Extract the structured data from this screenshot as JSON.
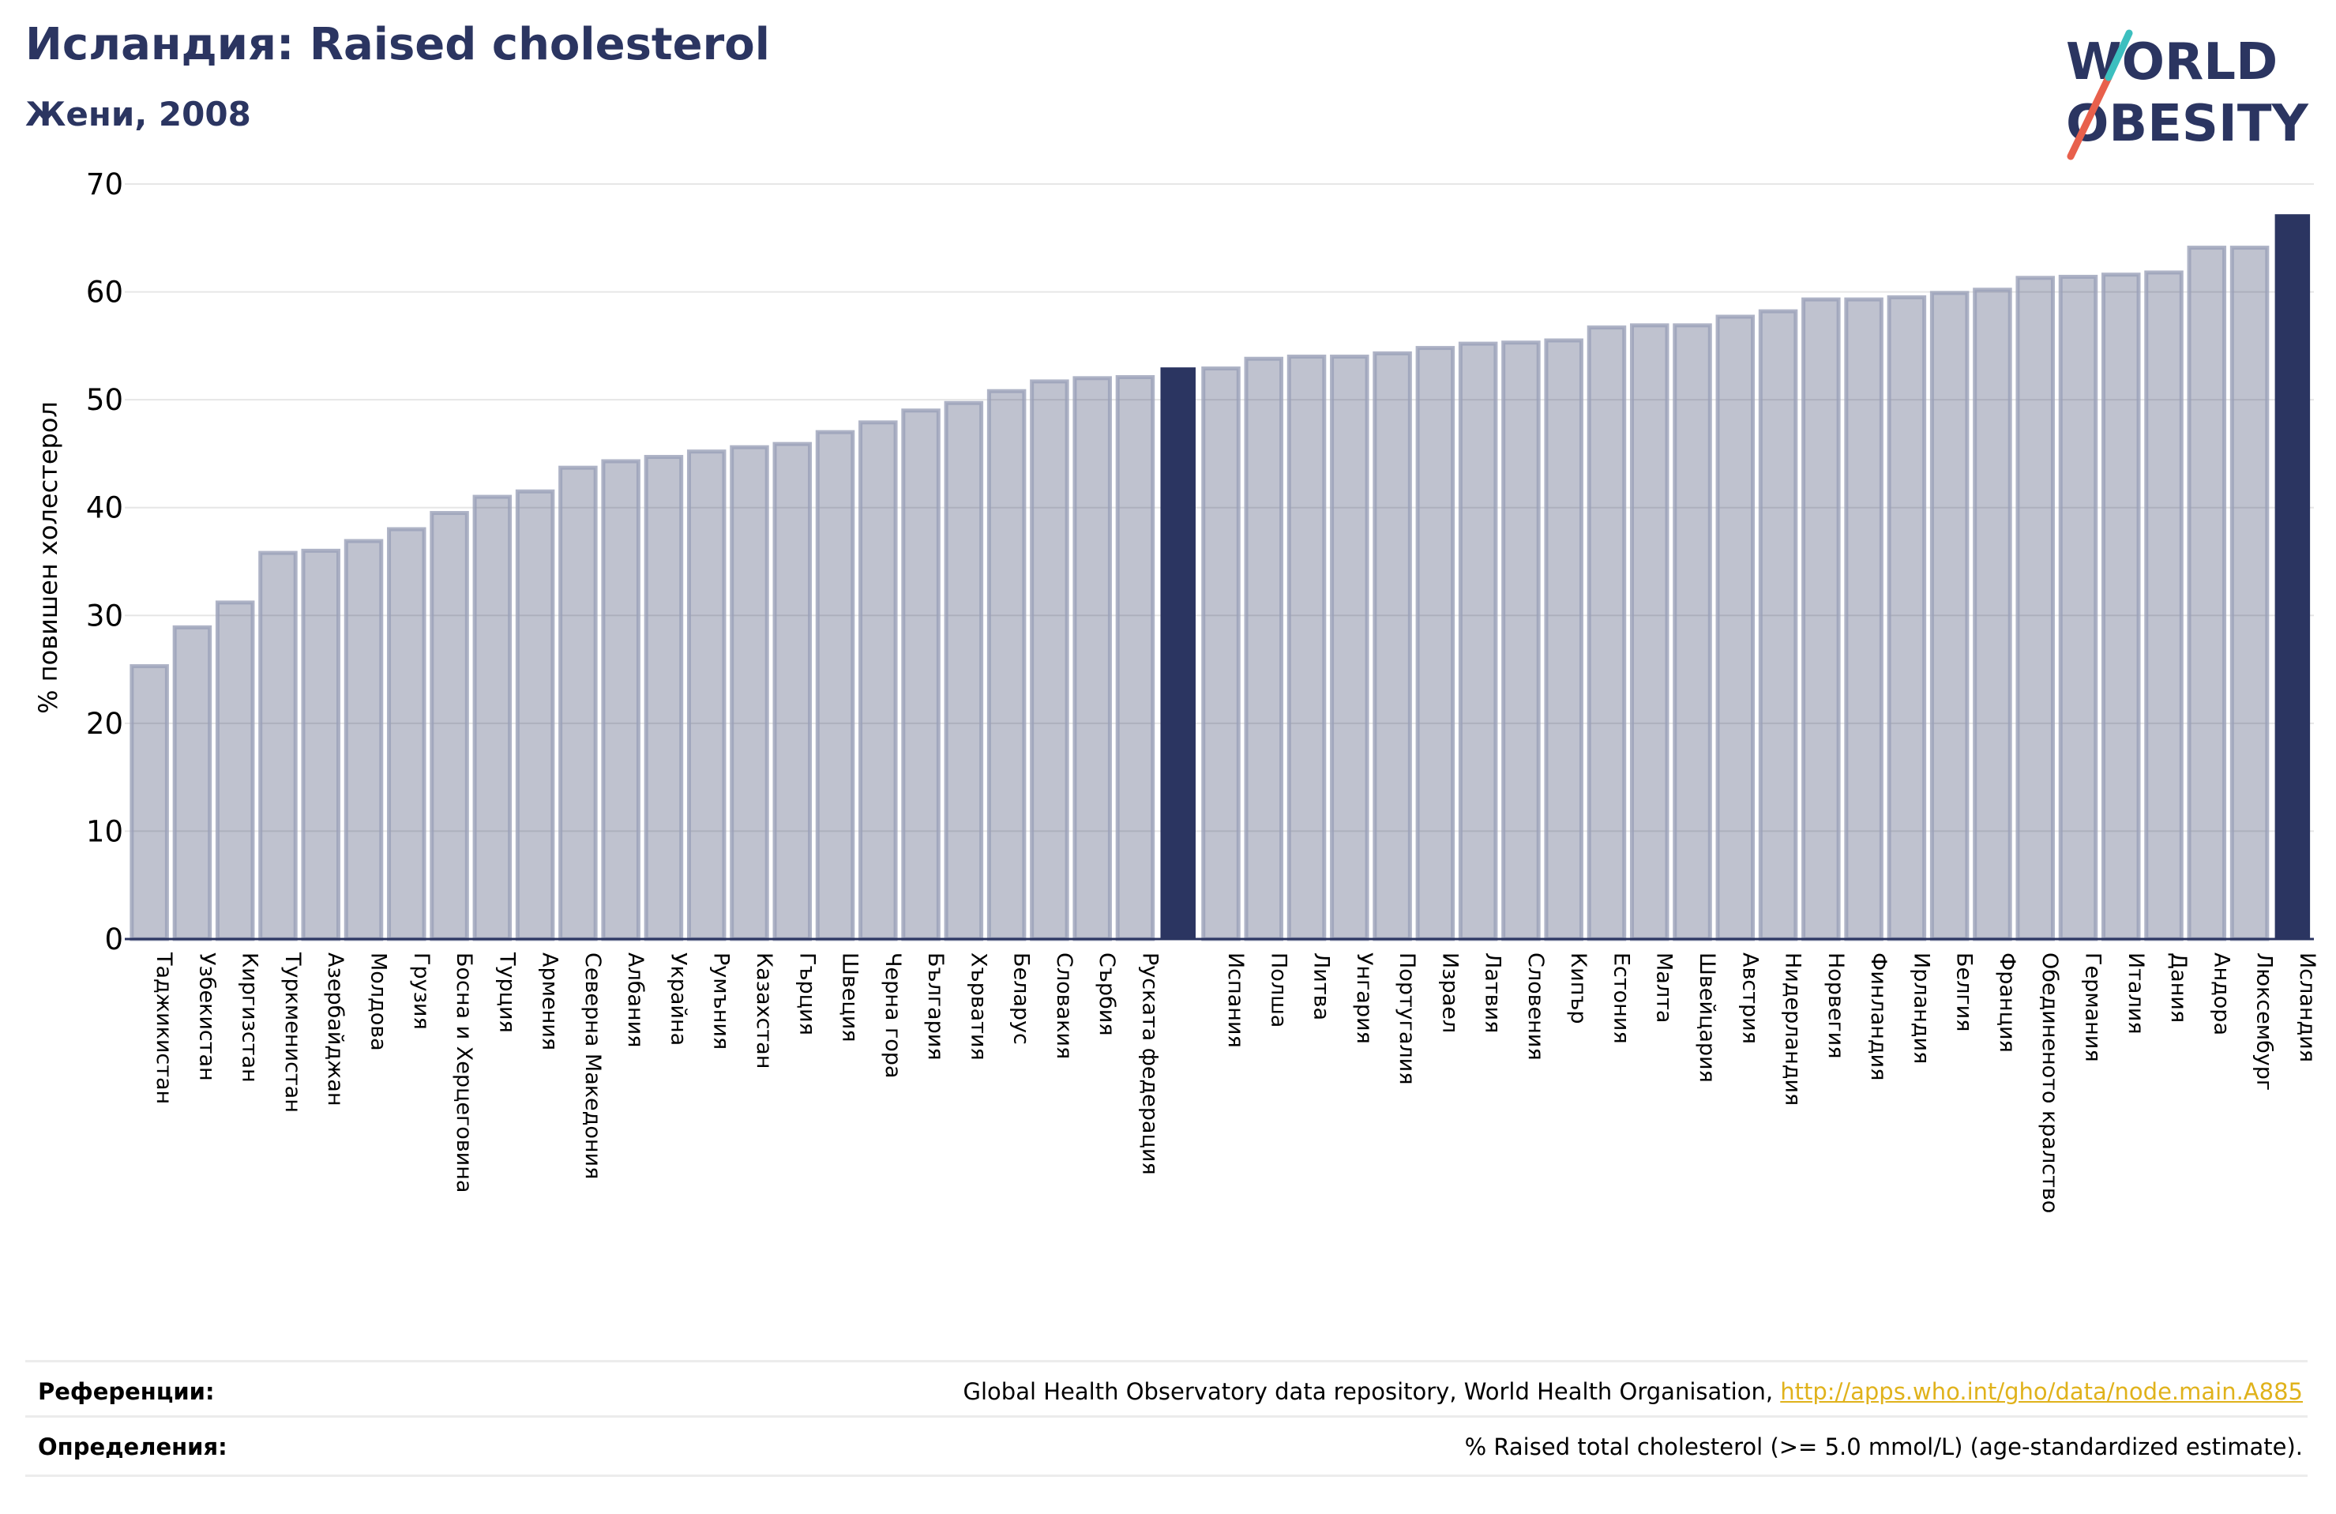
{
  "header": {
    "title": "Исландия: Raised cholesterol",
    "subtitle": "Жени, 2008"
  },
  "logo": {
    "line1": "WORLD",
    "line2": "OBESITY",
    "colors": {
      "text": "#2b3561",
      "slash_red": "#e8604c",
      "slash_teal": "#3cbfbf"
    }
  },
  "colors": {
    "bar_default": "#2b3561",
    "bar_default_opacity": 0.3,
    "bar_highlight": "#2b3561",
    "grid": "#e6e6e6",
    "axis": "#2b3561"
  },
  "chart_data": {
    "type": "bar",
    "ylabel": "% повишен холестерол",
    "xlabel": "",
    "ylim": [
      0,
      70
    ],
    "yticks": [
      0,
      10,
      20,
      30,
      40,
      50,
      60,
      70
    ],
    "grid": true,
    "categories": [
      "Таджикистан",
      "Узбекистан",
      "Киргизстан",
      "Туркменистан",
      "Азербайджан",
      "Молдова",
      "Грузия",
      "Босна и Херцеговина",
      "Турция",
      "Армения",
      "Северна Македония",
      "Албания",
      "Украйна",
      "Румъния",
      "Казахстан",
      "Гърция",
      "Швеция",
      "Черна гора",
      "България",
      "Хърватия",
      "Беларус",
      "Словакия",
      "Сърбия",
      "Руската федерация",
      "",
      "Испания",
      "Полша",
      "Литва",
      "Унгария",
      "Португалия",
      "Израел",
      "Латвия",
      "Словения",
      "Кипър",
      "Естония",
      "Малта",
      "Швейцария",
      "Австрия",
      "Нидерландия",
      "Норвегия",
      "Финландия",
      "Ирландия",
      "Белгия",
      "Франция",
      "Обединеното кралство",
      "Германия",
      "Италия",
      "Дания",
      "Андора",
      "Люксембург",
      "Исландия"
    ],
    "values": [
      25.3,
      28.9,
      31.2,
      35.8,
      36.0,
      36.9,
      38.0,
      39.5,
      41.0,
      41.5,
      43.7,
      44.3,
      44.7,
      45.2,
      45.6,
      45.9,
      47.0,
      47.9,
      49.0,
      49.7,
      50.8,
      51.7,
      52.0,
      52.1,
      53.0,
      52.9,
      53.8,
      54.0,
      54.0,
      54.3,
      54.8,
      55.2,
      55.3,
      55.5,
      56.7,
      56.9,
      56.9,
      57.7,
      58.2,
      59.3,
      59.3,
      59.5,
      59.9,
      60.2,
      61.3,
      61.4,
      61.6,
      61.8,
      64.1,
      64.1,
      67.2
    ],
    "highlight": [
      24,
      50
    ]
  },
  "footer": {
    "references_label": "Референции:",
    "references_text": "Global Health Observatory data repository, World Health Organisation, ",
    "references_link": "http://apps.who.int/gho/data/node.main.A885",
    "definitions_label": "Определения:",
    "definitions_text": "% Raised total cholesterol (>= 5.0 mmol/L) (age-standardized estimate)."
  }
}
